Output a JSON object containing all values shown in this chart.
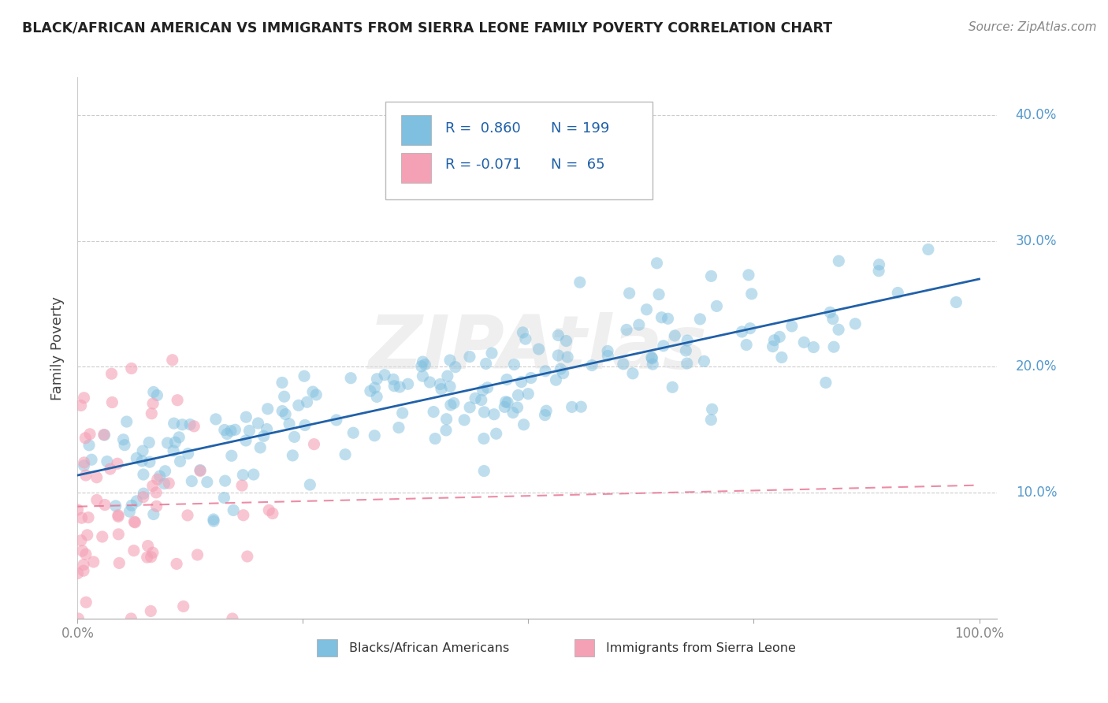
{
  "title": "BLACK/AFRICAN AMERICAN VS IMMIGRANTS FROM SIERRA LEONE FAMILY POVERTY CORRELATION CHART",
  "source": "Source: ZipAtlas.com",
  "ylabel": "Family Poverty",
  "legend1_label": "Blacks/African Americans",
  "legend2_label": "Immigrants from Sierra Leone",
  "R1": 0.86,
  "N1": 199,
  "R2": -0.071,
  "N2": 65,
  "blue_color": "#7fbfdf",
  "pink_color": "#f4a0b5",
  "blue_line_color": "#2060a8",
  "pink_line_color": "#e87090",
  "watermark_text": "ZIPAtlas",
  "background_color": "#ffffff",
  "legend_color": "#2060a8",
  "ytick_color": "#5599cc",
  "xtick_color": "#888888",
  "grid_color": "#cccccc",
  "title_color": "#222222",
  "source_color": "#888888",
  "ylabel_color": "#444444",
  "blue_seed": 12,
  "pink_seed": 77
}
